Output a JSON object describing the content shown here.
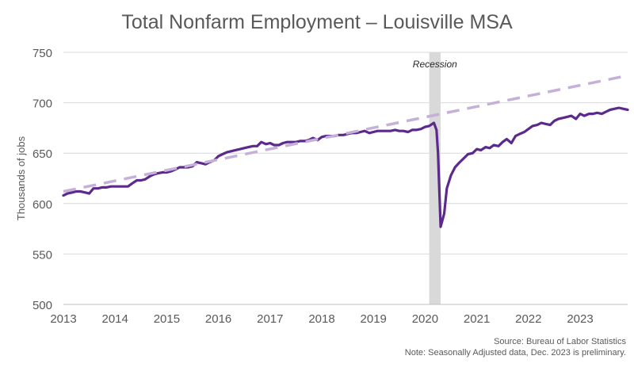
{
  "chart_data": {
    "type": "line",
    "title": "Total Nonfarm Employment – Louisville MSA",
    "ylabel": "Thousands of jobs",
    "xlabel": "",
    "ylim": [
      500,
      750
    ],
    "xlim": [
      2013.0,
      2023.92
    ],
    "y_ticks": [
      "500",
      "550",
      "600",
      "650",
      "700",
      "750"
    ],
    "x_ticks": [
      "2013",
      "2014",
      "2015",
      "2016",
      "2017",
      "2018",
      "2019",
      "2020",
      "2021",
      "2022",
      "2023"
    ],
    "grid": "horizontal",
    "annotations": [
      {
        "label": "Recession",
        "x_start": 2020.08,
        "x_end": 2020.3,
        "color": "#d9d9d9"
      }
    ],
    "series": [
      {
        "style": "solid",
        "color": "#5b2a8c",
        "points": [
          [
            2013.0,
            608
          ],
          [
            2013.08,
            610
          ],
          [
            2013.17,
            611
          ],
          [
            2013.25,
            612
          ],
          [
            2013.33,
            612
          ],
          [
            2013.42,
            611
          ],
          [
            2013.5,
            610
          ],
          [
            2013.58,
            615
          ],
          [
            2013.67,
            615
          ],
          [
            2013.75,
            616
          ],
          [
            2013.83,
            616
          ],
          [
            2013.92,
            617
          ],
          [
            2014.0,
            617
          ],
          [
            2014.08,
            617
          ],
          [
            2014.17,
            617
          ],
          [
            2014.25,
            617
          ],
          [
            2014.33,
            620
          ],
          [
            2014.42,
            623
          ],
          [
            2014.5,
            623
          ],
          [
            2014.58,
            624
          ],
          [
            2014.67,
            627
          ],
          [
            2014.75,
            629
          ],
          [
            2014.83,
            630
          ],
          [
            2014.92,
            631
          ],
          [
            2015.0,
            631
          ],
          [
            2015.08,
            632
          ],
          [
            2015.17,
            634
          ],
          [
            2015.25,
            636
          ],
          [
            2015.33,
            636
          ],
          [
            2015.42,
            636
          ],
          [
            2015.5,
            637
          ],
          [
            2015.58,
            641
          ],
          [
            2015.67,
            640
          ],
          [
            2015.75,
            639
          ],
          [
            2015.83,
            641
          ],
          [
            2015.92,
            643
          ],
          [
            2016.0,
            647
          ],
          [
            2016.08,
            649
          ],
          [
            2016.17,
            651
          ],
          [
            2016.25,
            652
          ],
          [
            2016.33,
            653
          ],
          [
            2016.42,
            654
          ],
          [
            2016.5,
            655
          ],
          [
            2016.58,
            656
          ],
          [
            2016.67,
            657
          ],
          [
            2016.75,
            657
          ],
          [
            2016.83,
            661
          ],
          [
            2016.92,
            659
          ],
          [
            2017.0,
            660
          ],
          [
            2017.08,
            658
          ],
          [
            2017.17,
            658
          ],
          [
            2017.25,
            660
          ],
          [
            2017.33,
            661
          ],
          [
            2017.42,
            661
          ],
          [
            2017.5,
            661
          ],
          [
            2017.58,
            662
          ],
          [
            2017.67,
            662
          ],
          [
            2017.75,
            663
          ],
          [
            2017.83,
            665
          ],
          [
            2017.92,
            663
          ],
          [
            2018.0,
            666
          ],
          [
            2018.08,
            667
          ],
          [
            2018.17,
            667
          ],
          [
            2018.25,
            667
          ],
          [
            2018.33,
            668
          ],
          [
            2018.42,
            668
          ],
          [
            2018.5,
            669
          ],
          [
            2018.58,
            670
          ],
          [
            2018.67,
            670
          ],
          [
            2018.75,
            671
          ],
          [
            2018.83,
            672
          ],
          [
            2018.92,
            670
          ],
          [
            2019.0,
            671
          ],
          [
            2019.08,
            672
          ],
          [
            2019.17,
            672
          ],
          [
            2019.25,
            672
          ],
          [
            2019.33,
            672
          ],
          [
            2019.42,
            673
          ],
          [
            2019.5,
            672
          ],
          [
            2019.58,
            672
          ],
          [
            2019.67,
            671
          ],
          [
            2019.75,
            673
          ],
          [
            2019.83,
            673
          ],
          [
            2019.92,
            674
          ],
          [
            2020.0,
            676
          ],
          [
            2020.08,
            677
          ],
          [
            2020.17,
            680
          ],
          [
            2020.22,
            673
          ],
          [
            2020.25,
            650
          ],
          [
            2020.3,
            577
          ],
          [
            2020.37,
            590
          ],
          [
            2020.42,
            615
          ],
          [
            2020.5,
            628
          ],
          [
            2020.58,
            636
          ],
          [
            2020.67,
            641
          ],
          [
            2020.75,
            645
          ],
          [
            2020.83,
            649
          ],
          [
            2020.92,
            650
          ],
          [
            2021.0,
            654
          ],
          [
            2021.08,
            653
          ],
          [
            2021.17,
            656
          ],
          [
            2021.25,
            655
          ],
          [
            2021.33,
            658
          ],
          [
            2021.42,
            657
          ],
          [
            2021.5,
            661
          ],
          [
            2021.58,
            664
          ],
          [
            2021.67,
            660
          ],
          [
            2021.75,
            667
          ],
          [
            2021.83,
            669
          ],
          [
            2021.92,
            671
          ],
          [
            2022.0,
            674
          ],
          [
            2022.08,
            677
          ],
          [
            2022.17,
            678
          ],
          [
            2022.25,
            680
          ],
          [
            2022.33,
            679
          ],
          [
            2022.42,
            678
          ],
          [
            2022.5,
            682
          ],
          [
            2022.58,
            684
          ],
          [
            2022.67,
            685
          ],
          [
            2022.75,
            686
          ],
          [
            2022.83,
            687
          ],
          [
            2022.92,
            684
          ],
          [
            2023.0,
            689
          ],
          [
            2023.08,
            687
          ],
          [
            2023.17,
            689
          ],
          [
            2023.25,
            689
          ],
          [
            2023.33,
            690
          ],
          [
            2023.42,
            689
          ],
          [
            2023.5,
            691
          ],
          [
            2023.58,
            693
          ],
          [
            2023.67,
            694
          ],
          [
            2023.75,
            695
          ],
          [
            2023.83,
            694
          ],
          [
            2023.92,
            693
          ]
        ]
      },
      {
        "style": "dashed",
        "color": "#c5b0d8",
        "points": [
          [
            2013.0,
            612
          ],
          [
            2023.92,
            727
          ]
        ]
      }
    ]
  },
  "footer": {
    "source": "Source: Bureau of Labor Statistics",
    "note": "Note: Seasonally Adjusted data, Dec. 2023 is preliminary."
  }
}
